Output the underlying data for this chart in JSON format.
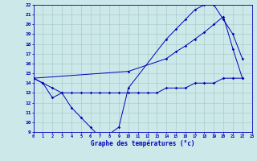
{
  "line1_x": [
    0,
    1,
    2,
    3,
    4,
    5,
    6,
    7,
    8,
    9,
    10,
    14,
    15,
    16,
    17,
    18,
    19,
    20,
    21,
    22
  ],
  "line1_y": [
    14.5,
    14.0,
    12.5,
    13.0,
    11.5,
    10.5,
    9.5,
    8.5,
    8.8,
    9.5,
    13.5,
    18.5,
    19.5,
    20.5,
    21.5,
    22.0,
    22.0,
    20.5,
    19.0,
    16.5
  ],
  "line2_x": [
    0,
    1,
    2,
    3,
    4,
    5,
    6,
    7,
    8,
    9,
    10,
    11,
    12,
    13,
    14,
    15,
    16,
    17,
    18,
    19,
    20,
    21,
    22
  ],
  "line2_y": [
    14.5,
    14.0,
    13.5,
    13.0,
    13.0,
    13.0,
    13.0,
    13.0,
    13.0,
    13.0,
    13.0,
    13.0,
    13.0,
    13.0,
    13.5,
    13.5,
    13.5,
    14.0,
    14.0,
    14.0,
    14.5,
    14.5,
    14.5
  ],
  "line3_x": [
    0,
    10,
    14,
    15,
    16,
    17,
    18,
    19,
    20,
    21,
    22
  ],
  "line3_y": [
    14.5,
    15.2,
    16.5,
    17.2,
    17.8,
    18.5,
    19.2,
    20.0,
    20.8,
    17.5,
    14.5
  ],
  "line_color": "#0000bb",
  "bg_color": "#cce8e8",
  "grid_color": "#aacccc",
  "xlabel": "Graphe des températures (°c)",
  "xlim": [
    0,
    23
  ],
  "ylim": [
    9,
    22
  ],
  "xticks": [
    0,
    1,
    2,
    3,
    4,
    5,
    6,
    7,
    8,
    9,
    10,
    11,
    12,
    13,
    14,
    15,
    16,
    17,
    18,
    19,
    20,
    21,
    22,
    23
  ],
  "yticks": [
    9,
    10,
    11,
    12,
    13,
    14,
    15,
    16,
    17,
    18,
    19,
    20,
    21,
    22
  ]
}
